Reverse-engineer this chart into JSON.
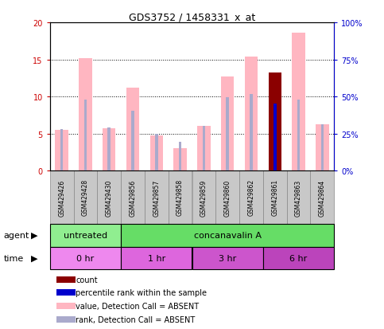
{
  "title": "GDS3752 / 1458331_x_at",
  "samples": [
    "GSM429426",
    "GSM429428",
    "GSM429430",
    "GSM429856",
    "GSM429857",
    "GSM429858",
    "GSM429859",
    "GSM429860",
    "GSM429862",
    "GSM429861",
    "GSM429863",
    "GSM429864"
  ],
  "value_absent": [
    5.5,
    15.2,
    5.7,
    11.2,
    4.8,
    3.0,
    6.0,
    12.7,
    15.4,
    13.2,
    18.6,
    6.3
  ],
  "rank_absent": [
    5.6,
    9.6,
    5.8,
    8.1,
    5.0,
    3.9,
    6.0,
    9.9,
    10.3,
    null,
    9.6,
    6.3
  ],
  "count_val": [
    null,
    null,
    null,
    null,
    null,
    null,
    null,
    null,
    null,
    13.2,
    null,
    null
  ],
  "percentile_val": [
    null,
    null,
    null,
    null,
    null,
    null,
    null,
    null,
    null,
    9.0,
    null,
    null
  ],
  "ylim_left": [
    0,
    20
  ],
  "ylim_right": [
    0,
    100
  ],
  "yticks_left": [
    0,
    5,
    10,
    15,
    20
  ],
  "yticks_right": [
    0,
    25,
    50,
    75,
    100
  ],
  "ytick_labels_left": [
    "0",
    "5",
    "10",
    "15",
    "20"
  ],
  "ytick_labels_right": [
    "0%",
    "25%",
    "50%",
    "75%",
    "100%"
  ],
  "agent_groups": [
    {
      "label": "untreated",
      "start": 0,
      "end": 3,
      "color": "#90EE90"
    },
    {
      "label": "concanavalin A",
      "start": 3,
      "end": 12,
      "color": "#66DD66"
    }
  ],
  "time_groups": [
    {
      "label": "0 hr",
      "start": 0,
      "end": 3,
      "color": "#EE88EE"
    },
    {
      "label": "1 hr",
      "start": 3,
      "end": 6,
      "color": "#DD66DD"
    },
    {
      "label": "3 hr",
      "start": 6,
      "end": 9,
      "color": "#CC55CC"
    },
    {
      "label": "6 hr",
      "start": 9,
      "end": 12,
      "color": "#BB44BB"
    }
  ],
  "color_value_absent": "#FFB6C1",
  "color_rank_absent": "#AAAACC",
  "color_count": "#8B0000",
  "color_blue": "#0000CC",
  "background_color": "#FFFFFF",
  "left_label_color": "#CC0000",
  "right_label_color": "#0000CC",
  "gray_cell": "#C8C8C8"
}
